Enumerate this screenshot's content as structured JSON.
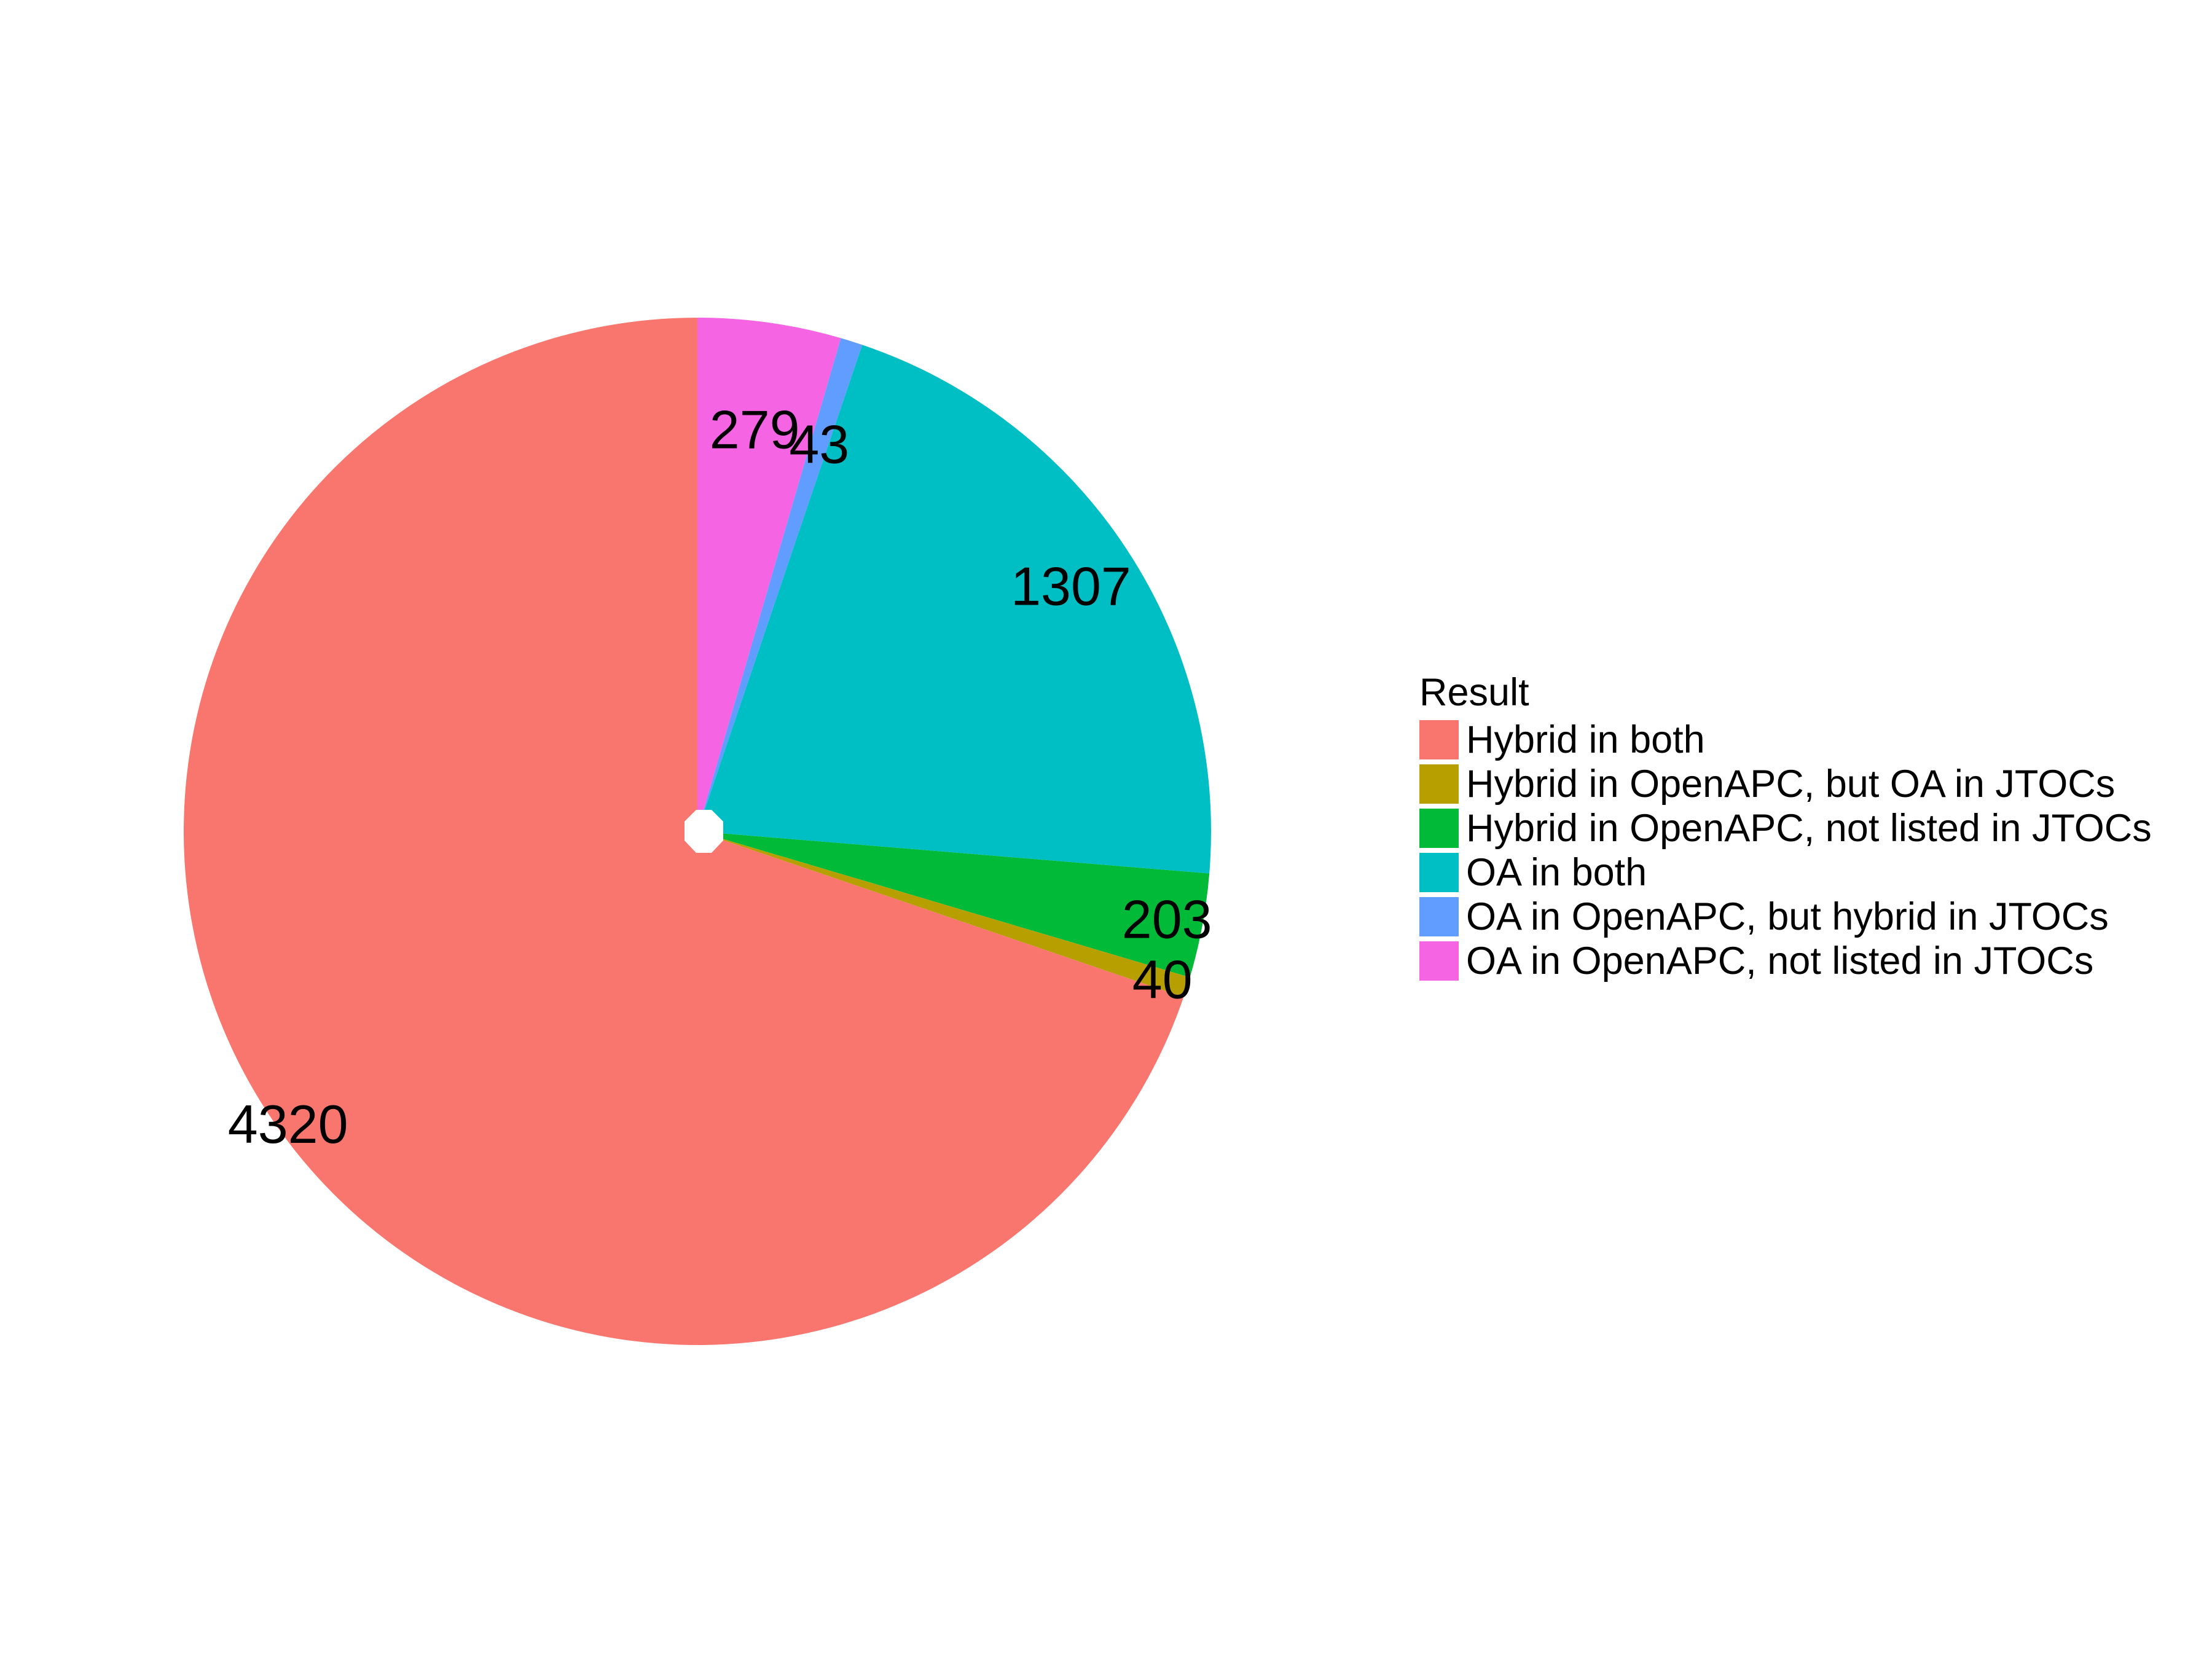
{
  "chart_data": {
    "type": "pie",
    "legend_title": "Result",
    "legend_position": "right",
    "start_angle_deg": 0,
    "direction": "clockwise",
    "order": [
      "OA in OpenAPC, not listed in JTOCs",
      "OA in OpenAPC, but hybrid in JTOCs",
      "OA in both",
      "Hybrid in OpenAPC, not listed in JTOCs",
      "Hybrid in OpenAPC, but OA in JTOCs",
      "Hybrid in both"
    ],
    "slices": [
      {
        "name": "Hybrid in both",
        "value": 4320,
        "label": "4320",
        "color": "#F8766D"
      },
      {
        "name": "Hybrid in OpenAPC, but OA in JTOCs",
        "value": 40,
        "label": "40",
        "color": "#B79F00"
      },
      {
        "name": "Hybrid in OpenAPC, not listed in JTOCs",
        "value": 203,
        "label": "203",
        "color": "#00BA38"
      },
      {
        "name": "OA in both",
        "value": 1307,
        "label": "1307",
        "color": "#00BFC4"
      },
      {
        "name": "OA in OpenAPC, but hybrid in JTOCs",
        "value": 43,
        "label": "43",
        "color": "#619CFF"
      },
      {
        "name": "OA in OpenAPC, not listed in JTOCs",
        "value": 279,
        "label": "279",
        "color": "#F564E3"
      }
    ]
  }
}
